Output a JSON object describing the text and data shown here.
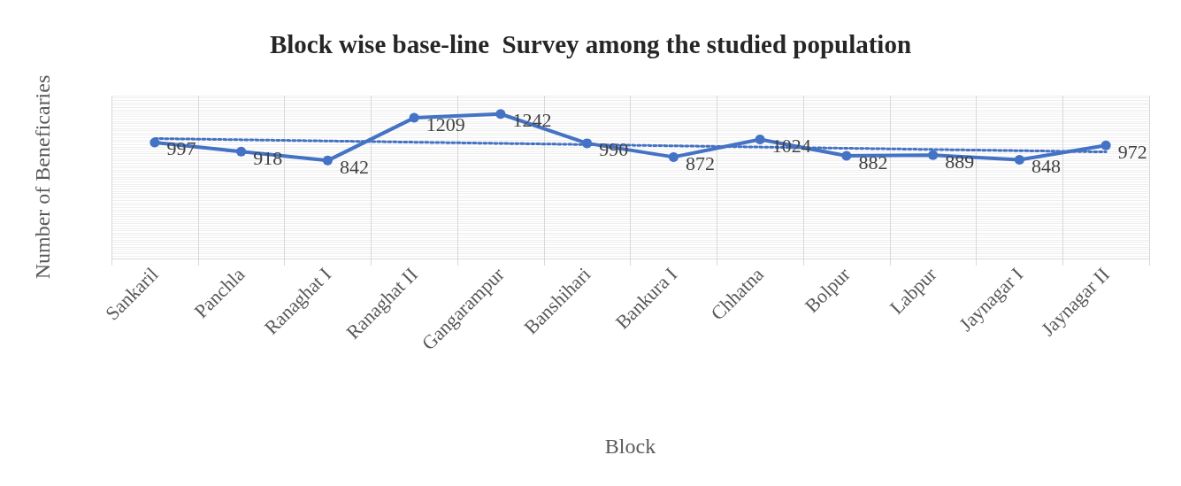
{
  "chart_data": {
    "type": "line",
    "title": "Block wise base-line  Survey among the studied population",
    "xlabel": "Block",
    "ylabel": "Number of Beneficaries",
    "categories": [
      "Sankaril",
      "Panchla",
      "Ranaghat I",
      "Ranaghat II",
      "Gangarampur",
      "Banshihari",
      "Bankura I",
      "Chhatna",
      "Bolpur",
      "Labpur",
      "Jaynagar I",
      "Jaynagar II"
    ],
    "series": [
      {
        "color": "#4472c4",
        "values": [
          997,
          918,
          842,
          1209,
          1242,
          990,
          872,
          1024,
          882,
          889,
          848,
          972
        ],
        "marker": "circle",
        "line_style": "solid"
      },
      {
        "type": "line",
        "color": "#4472c4",
        "x": [
          "Sankaril",
          "Jaynagar II"
        ],
        "values": [
          1031,
          916
        ],
        "marker": "none",
        "line_style": "dotted",
        "value_labels": [
          null,
          null
        ]
      }
    ],
    "data_labels": true,
    "grid": true,
    "tick_labels": "x"
  }
}
